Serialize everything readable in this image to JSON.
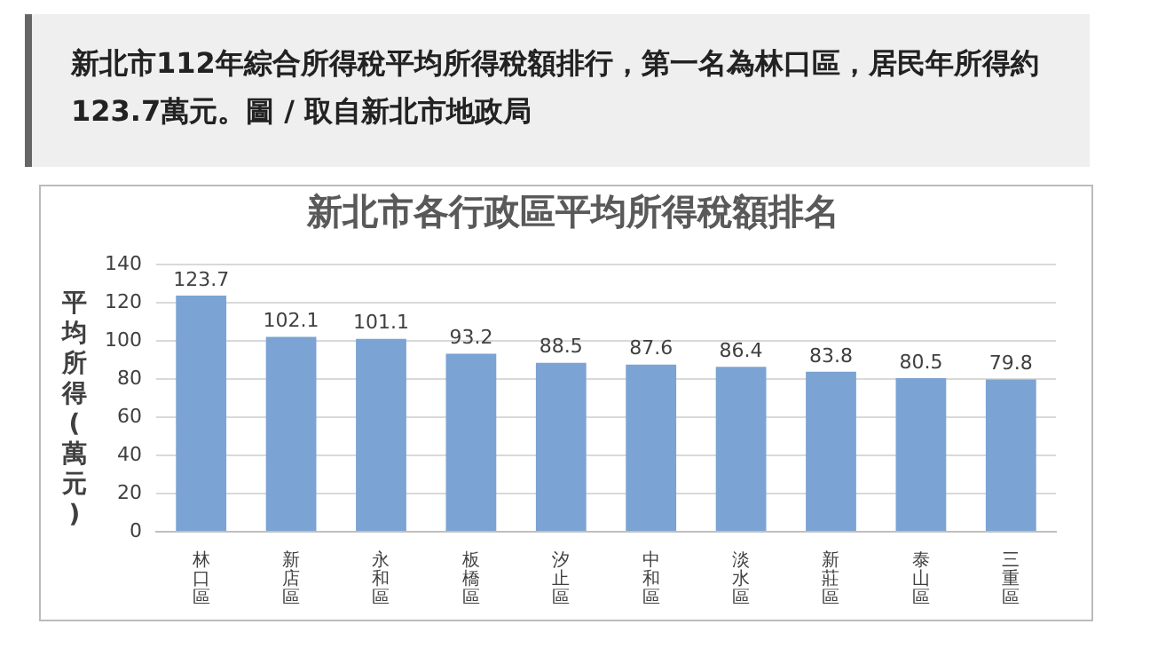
{
  "chart_data": {
    "type": "bar",
    "title": "新北市各行政區平均所得稅額排名",
    "ylabel": "平均所得(萬元)",
    "annotations": [
      "新北市112年綜合所得稅平均所得稅額排行，第一名為林口區，居民年所得約123.7萬元。圖 / 取自新北市地政局"
    ],
    "categories": [
      "林口區",
      "新店區",
      "永和區",
      "板橋區",
      "汐止區",
      "中和區",
      "淡水區",
      "新莊區",
      "泰山區",
      "三重區"
    ],
    "values": [
      123.7,
      102.1,
      101.1,
      93.2,
      88.5,
      87.6,
      86.4,
      83.8,
      80.5,
      79.8
    ],
    "color": "#7ba3d3",
    "ylim": [
      0,
      140
    ],
    "yticks": [
      0,
      20,
      40,
      60,
      80,
      100,
      120,
      140
    ],
    "grid": "y",
    "data_labels": true
  }
}
